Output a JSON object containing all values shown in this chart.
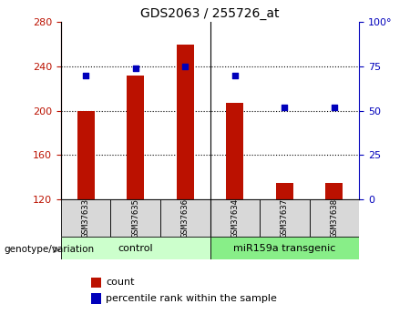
{
  "title": "GDS2063 / 255726_at",
  "categories": [
    "GSM37633",
    "GSM37635",
    "GSM37636",
    "GSM37634",
    "GSM37637",
    "GSM37638"
  ],
  "bar_values": [
    200,
    232,
    260,
    207,
    135,
    135
  ],
  "dot_values": [
    70,
    74,
    75,
    70,
    52,
    52
  ],
  "bar_bottom": 120,
  "ylim_left": [
    120,
    280
  ],
  "ylim_right": [
    0,
    100
  ],
  "yticks_left": [
    120,
    160,
    200,
    240,
    280
  ],
  "yticks_right": [
    0,
    25,
    50,
    75,
    100
  ],
  "bar_color": "#bb1100",
  "dot_color": "#0000bb",
  "bg_color": "#ffffff",
  "group1_label": "control",
  "group2_label": "miR159a transgenic",
  "group1_color": "#ccffcc",
  "group2_color": "#88ee88",
  "legend_count_label": "count",
  "legend_pct_label": "percentile rank within the sample",
  "xlabel_left": "genotype/variation",
  "gridline_values": [
    160,
    200,
    240
  ],
  "bar_width": 0.35
}
